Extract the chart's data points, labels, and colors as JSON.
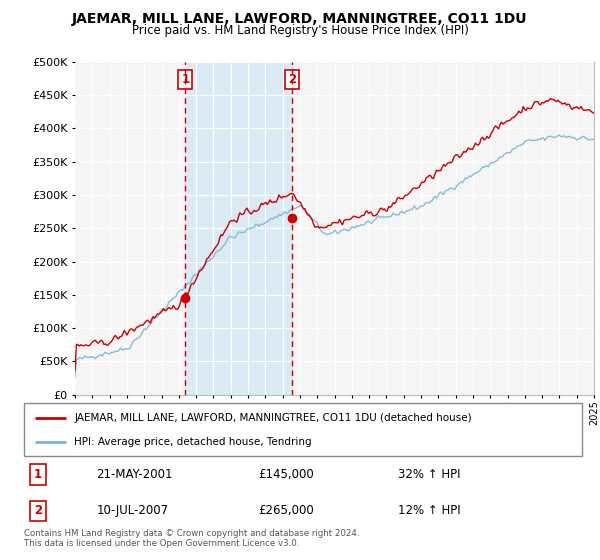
{
  "title": "JAEMAR, MILL LANE, LAWFORD, MANNINGTREE, CO11 1DU",
  "subtitle": "Price paid vs. HM Land Registry's House Price Index (HPI)",
  "legend_line1": "JAEMAR, MILL LANE, LAWFORD, MANNINGTREE, CO11 1DU (detached house)",
  "legend_line2": "HPI: Average price, detached house, Tendring",
  "sale1_date": "21-MAY-2001",
  "sale1_price": "£145,000",
  "sale1_hpi": "32% ↑ HPI",
  "sale2_date": "10-JUL-2007",
  "sale2_price": "£265,000",
  "sale2_hpi": "12% ↑ HPI",
  "footer": "Contains HM Land Registry data © Crown copyright and database right 2024.\nThis data is licensed under the Open Government Licence v3.0.",
  "ylim": [
    0,
    500000
  ],
  "yticks": [
    0,
    50000,
    100000,
    150000,
    200000,
    250000,
    300000,
    350000,
    400000,
    450000,
    500000
  ],
  "year_start": 1995,
  "year_end": 2025,
  "sale1_year": 2001.38,
  "sale2_year": 2007.53,
  "sale1_price_val": 145000,
  "sale2_price_val": 265000,
  "hpi_color": "#7ab5d8",
  "price_color": "#cc0000",
  "shade_color": "#daeaf5",
  "bg_color": "#f0f0f0",
  "plot_bg": "#f5f5f5"
}
